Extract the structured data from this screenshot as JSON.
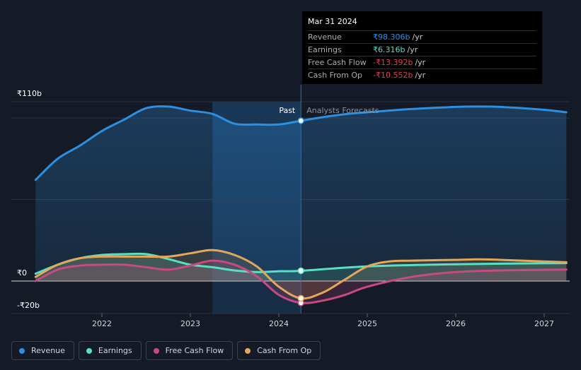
{
  "chart_data": {
    "type": "area",
    "x_unit": "year",
    "xlim": [
      2021.25,
      2027.25
    ],
    "ylim": [
      -30,
      115
    ],
    "y_tick_labels": [
      {
        "value": 110,
        "label": "₹110b"
      },
      {
        "value": 0,
        "label": "₹0"
      },
      {
        "value": -20,
        "label": "-₹20b"
      }
    ],
    "x_ticks": [
      2022,
      2023,
      2024,
      2025,
      2026,
      2027
    ],
    "x_tick_labels": [
      "2022",
      "2023",
      "2024",
      "2025",
      "2026",
      "2027"
    ],
    "past_label": "Past",
    "forecast_label": "Analysts Forecasts",
    "divider_x": 2024.25,
    "highlight_start_x": 2023.25,
    "series": [
      {
        "name": "Revenue",
        "color": "#2d8fe0",
        "x": [
          2021.25,
          2021.5,
          2021.75,
          2022.0,
          2022.25,
          2022.5,
          2022.75,
          2023.0,
          2023.25,
          2023.5,
          2023.75,
          2024.0,
          2024.25,
          2024.5,
          2024.75,
          2025.0,
          2025.5,
          2026.0,
          2026.25,
          2026.5,
          2027.0,
          2027.25
        ],
        "values": [
          62,
          75,
          83,
          92,
          99,
          106,
          107,
          104.5,
          102.5,
          96.5,
          96,
          96,
          98.3,
          100.5,
          102.3,
          103.5,
          105.5,
          106.8,
          107,
          106.8,
          105,
          103.5
        ]
      },
      {
        "name": "Earnings",
        "color": "#57e0c4",
        "x": [
          2021.25,
          2021.5,
          2021.75,
          2022.0,
          2022.25,
          2022.5,
          2022.75,
          2023.0,
          2023.25,
          2023.5,
          2023.75,
          2024.0,
          2024.25,
          2025.0,
          2026.0,
          2027.25
        ],
        "values": [
          4.5,
          10,
          14,
          16,
          16.5,
          16.5,
          13.5,
          10,
          8.5,
          6.5,
          5.5,
          6,
          6.3,
          9,
          10.3,
          11
        ]
      },
      {
        "name": "Free Cash Flow",
        "color": "#c74b82",
        "x": [
          2021.25,
          2021.5,
          2021.75,
          2022.0,
          2022.25,
          2022.5,
          2022.75,
          2023.0,
          2023.25,
          2023.5,
          2023.75,
          2024.0,
          2024.25,
          2024.5,
          2024.75,
          2025.0,
          2025.5,
          2026.0,
          2026.5,
          2027.25
        ],
        "values": [
          0,
          7,
          9.5,
          10,
          10,
          8.5,
          7,
          9.5,
          12.5,
          10,
          3,
          -8.5,
          -13.4,
          -12,
          -8.5,
          -3.5,
          2.5,
          5.5,
          6.5,
          7
        ]
      },
      {
        "name": "Cash From Op",
        "color": "#e3a75a",
        "x": [
          2021.25,
          2021.5,
          2021.75,
          2022.0,
          2022.25,
          2022.5,
          2022.75,
          2023.0,
          2023.25,
          2023.5,
          2023.75,
          2024.0,
          2024.25,
          2024.5,
          2024.75,
          2025.0,
          2025.25,
          2025.5,
          2026.0,
          2026.25,
          2026.5,
          2027.25
        ],
        "values": [
          2.5,
          10,
          14,
          15,
          15,
          15,
          15,
          17,
          19,
          16,
          9,
          -3.5,
          -10.6,
          -7,
          1,
          9,
          12,
          12.5,
          13,
          13.3,
          13,
          11.5
        ]
      }
    ],
    "tooltip_markers": [
      {
        "series": "Revenue",
        "value": 98.3
      },
      {
        "series": "Earnings",
        "value": 6.3
      },
      {
        "series": "Free Cash Flow",
        "value": -13.4
      },
      {
        "series": "Cash From Op",
        "value": -10.6
      }
    ]
  },
  "tooltip": {
    "date": "Mar 31 2024",
    "unit": "/yr",
    "rows": [
      {
        "label": "Revenue",
        "value": "₹98.306b",
        "color": "#2d8fe0"
      },
      {
        "label": "Earnings",
        "value": "₹6.316b",
        "color": "#57e0c4"
      },
      {
        "label": "Free Cash Flow",
        "value": "-₹13.392b",
        "color": "#e0414e"
      },
      {
        "label": "Cash From Op",
        "value": "-₹10.552b",
        "color": "#e0414e"
      }
    ]
  },
  "legend": [
    {
      "label": "Revenue",
      "color": "#2d8fe0"
    },
    {
      "label": "Earnings",
      "color": "#57e0c4"
    },
    {
      "label": "Free Cash Flow",
      "color": "#c74b82"
    },
    {
      "label": "Cash From Op",
      "color": "#e3a75a"
    }
  ]
}
